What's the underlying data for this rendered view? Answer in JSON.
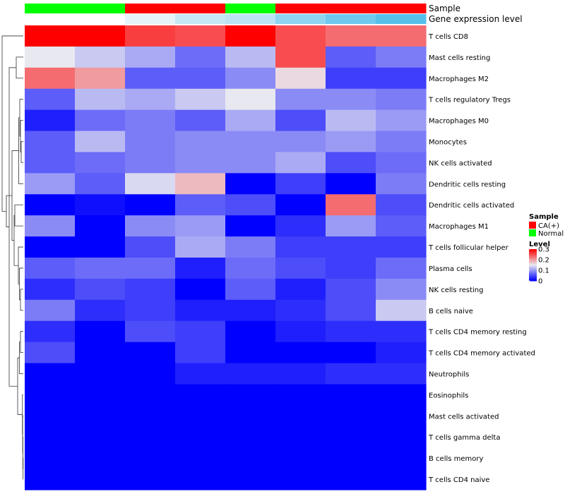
{
  "chart_data": {
    "type": "heatmap",
    "title": "",
    "color_scale": {
      "min": 0,
      "mid": 0.15,
      "max": 0.3,
      "low_color": "#0000ff",
      "mid_color": "#e8e8f0",
      "high_color": "#ff0000"
    },
    "annotations": {
      "sample": {
        "label": "Sample",
        "values": [
          "Normal",
          "Normal",
          "CA(+)",
          "CA(+)",
          "Normal",
          "CA(+)",
          "CA(+)",
          "CA(+)"
        ],
        "colors": {
          "CA(+)": "#ff0000",
          "Normal": "#00ff00"
        }
      },
      "gene_expression": {
        "label": "Gene expression level",
        "colors": [
          "#ffffff",
          "#ffffff",
          "#e6f4fa",
          "#c6e7f4",
          "#bbe3f3",
          "#8fd4f0",
          "#6fc8ee",
          "#56bfec"
        ]
      }
    },
    "rows": [
      "T cells CD8",
      "Mast cells resting",
      "Macrophages M2",
      "T cells regulatory  Tregs",
      "Macrophages M0",
      "Monocytes",
      "NK cells activated",
      "Dendritic cells resting",
      "Dendritic cells activated",
      "Macrophages M1",
      "T cells follicular helper",
      "Plasma cells",
      "NK cells resting",
      "B cells naive",
      "T cells CD4 memory resting",
      "T cells CD4 memory activated",
      "Neutrophils",
      "Eosinophils",
      "Mast cells activated",
      "T cells gamma delta",
      "B cells memory",
      "T cells CD4 naive"
    ],
    "values": [
      [
        0.3,
        0.3,
        0.26,
        0.25,
        0.3,
        0.25,
        0.23,
        0.23
      ],
      [
        0.15,
        0.13,
        0.11,
        0.07,
        0.12,
        0.25,
        0.06,
        0.08
      ],
      [
        0.23,
        0.2,
        0.06,
        0.06,
        0.09,
        0.16,
        0.04,
        0.04
      ],
      [
        0.06,
        0.12,
        0.11,
        0.13,
        0.15,
        0.09,
        0.09,
        0.08
      ],
      [
        0.02,
        0.07,
        0.08,
        0.06,
        0.11,
        0.05,
        0.12,
        0.1
      ],
      [
        0.06,
        0.12,
        0.08,
        0.09,
        0.09,
        0.09,
        0.1,
        0.08
      ],
      [
        0.06,
        0.07,
        0.08,
        0.09,
        0.09,
        0.11,
        0.05,
        0.07
      ],
      [
        0.1,
        0.06,
        0.14,
        0.18,
        0.0,
        0.04,
        0.0,
        0.08
      ],
      [
        0.0,
        0.01,
        0.0,
        0.06,
        0.05,
        0.0,
        0.23,
        0.05
      ],
      [
        0.09,
        0.0,
        0.09,
        0.1,
        0.0,
        0.03,
        0.1,
        0.06
      ],
      [
        0.0,
        0.0,
        0.05,
        0.11,
        0.08,
        0.04,
        0.04,
        0.04
      ],
      [
        0.06,
        0.07,
        0.07,
        0.02,
        0.07,
        0.05,
        0.04,
        0.07
      ],
      [
        0.03,
        0.05,
        0.04,
        0.0,
        0.06,
        0.02,
        0.05,
        0.09
      ],
      [
        0.08,
        0.03,
        0.04,
        0.02,
        0.02,
        0.03,
        0.05,
        0.13
      ],
      [
        0.03,
        0.0,
        0.05,
        0.04,
        0.0,
        0.02,
        0.03,
        0.03
      ],
      [
        0.05,
        0.0,
        0.0,
        0.04,
        0.0,
        0.0,
        0.0,
        0.02
      ],
      [
        0.0,
        0.0,
        0.0,
        0.02,
        0.02,
        0.02,
        0.03,
        0.03
      ],
      [
        0.0,
        0.0,
        0.0,
        0.0,
        0.0,
        0.0,
        0.0,
        0.0
      ],
      [
        0.0,
        0.0,
        0.0,
        0.0,
        0.0,
        0.0,
        0.0,
        0.0
      ],
      [
        0.0,
        0.0,
        0.0,
        0.0,
        0.0,
        0.0,
        0.0,
        0.0
      ],
      [
        0.0,
        0.0,
        0.0,
        0.0,
        0.0,
        0.0,
        0.0,
        0.0
      ],
      [
        0.0,
        0.0,
        0.0,
        0.0,
        0.0,
        0.0,
        0.0,
        0.0
      ]
    ],
    "legend": {
      "sample_title": "Sample",
      "sample_entries": [
        "CA(+)",
        "Normal"
      ],
      "level_title": "Level",
      "level_ticks": [
        "0.3",
        "0.2",
        "0.1",
        "0"
      ],
      "level_tick_values": [
        0.3,
        0.2,
        0.1,
        0
      ]
    },
    "dendrogram": {
      "merges": [
        [
          20,
          21,
          0.3
        ],
        [
          19,
          -1,
          0.6
        ],
        [
          18,
          -2,
          0.9
        ],
        [
          17,
          -3,
          1.2
        ],
        [
          14,
          15,
          4.0
        ],
        [
          16,
          -5,
          5.5
        ],
        [
          -4,
          -6,
          8.0
        ],
        [
          12,
          13,
          4.0
        ],
        [
          11,
          -8,
          5.5
        ],
        [
          10,
          -9,
          7.0
        ],
        [
          8,
          9,
          12.0
        ],
        [
          -10,
          -11,
          13.0
        ],
        [
          5,
          6,
          3.0
        ],
        [
          4,
          -13,
          4.0
        ],
        [
          3,
          -14,
          5.0
        ],
        [
          7,
          -15,
          6.5
        ],
        [
          -12,
          -16,
          16.0
        ],
        [
          1,
          2,
          10.0
        ],
        [
          -7,
          -18,
          20.0
        ],
        [
          -17,
          -19,
          24.0
        ],
        [
          0,
          -20,
          30.0
        ]
      ],
      "max_height": 30
    }
  }
}
